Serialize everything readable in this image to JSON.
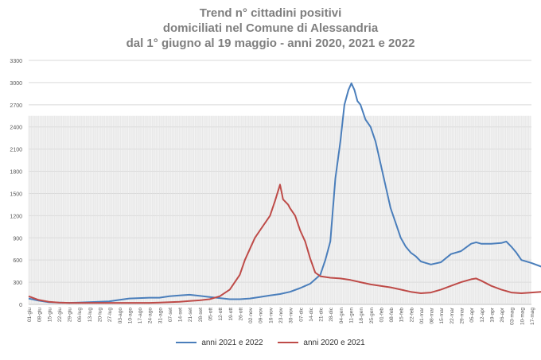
{
  "chart_data": {
    "type": "line",
    "title_lines": [
      "Trend n° cittadini positivi",
      "domiciliati nel Comune di Alessandria",
      "dal 1° giugno al 19 maggio - anni 2020, 2021 e 2022"
    ],
    "ylim": [
      0,
      3300
    ],
    "yticks": [
      0,
      300,
      600,
      900,
      1200,
      1500,
      1800,
      2100,
      2400,
      2700,
      3000,
      3300
    ],
    "x_tick_labels": [
      "01-giu",
      "08-giu",
      "15-giu",
      "22-giu",
      "29-giu",
      "06-lug",
      "13-lug",
      "20-lug",
      "27-lug",
      "03-ago",
      "10-ago",
      "17-ago",
      "24-ago",
      "31-ago",
      "07-set",
      "14-set",
      "21-set",
      "28-set",
      "05-ott",
      "12-ott",
      "19-ott",
      "26-ott",
      "02-nov",
      "09-nov",
      "16-nov",
      "23-nov",
      "30-nov",
      "07-dic",
      "14-dic",
      "21-dic",
      "28-dic",
      "04-gen",
      "11-gen",
      "18-gen",
      "25-gen",
      "01-feb",
      "08-feb",
      "15-feb",
      "22-feb",
      "01-mar",
      "08-mar",
      "15-mar",
      "22-mar",
      "29-mar",
      "05-apr",
      "12-apr",
      "19-apr",
      "26-apr",
      "03-mag",
      "10-mag",
      "17-mag"
    ],
    "grid": "horizontal",
    "legend_position": "bottom",
    "series": [
      {
        "name": "anni 2021 e 2022",
        "color": "#4a7ebb",
        "points": [
          [
            0,
            80
          ],
          [
            1,
            50
          ],
          [
            2,
            30
          ],
          [
            3,
            25
          ],
          [
            4,
            20
          ],
          [
            5,
            25
          ],
          [
            6,
            30
          ],
          [
            7,
            35
          ],
          [
            8,
            40
          ],
          [
            9,
            60
          ],
          [
            10,
            80
          ],
          [
            11,
            85
          ],
          [
            12,
            90
          ],
          [
            13,
            90
          ],
          [
            14,
            110
          ],
          [
            15,
            120
          ],
          [
            16,
            130
          ],
          [
            17,
            115
          ],
          [
            18,
            100
          ],
          [
            19,
            85
          ],
          [
            20,
            70
          ],
          [
            21,
            70
          ],
          [
            22,
            80
          ],
          [
            23,
            100
          ],
          [
            24,
            120
          ],
          [
            25,
            140
          ],
          [
            26,
            170
          ],
          [
            27,
            220
          ],
          [
            28,
            280
          ],
          [
            29,
            400
          ],
          [
            29.5,
            600
          ],
          [
            30,
            850
          ],
          [
            30.5,
            1700
          ],
          [
            31,
            2200
          ],
          [
            31.4,
            2700
          ],
          [
            31.8,
            2900
          ],
          [
            32.1,
            2990
          ],
          [
            32.4,
            2900
          ],
          [
            32.7,
            2750
          ],
          [
            33,
            2700
          ],
          [
            33.5,
            2500
          ],
          [
            34,
            2400
          ],
          [
            34.5,
            2200
          ],
          [
            35,
            1900
          ],
          [
            35.5,
            1600
          ],
          [
            36,
            1300
          ],
          [
            36.5,
            1100
          ],
          [
            37,
            900
          ],
          [
            37.5,
            780
          ],
          [
            38,
            700
          ],
          [
            38.5,
            650
          ],
          [
            39,
            580
          ],
          [
            39.5,
            560
          ],
          [
            40,
            540
          ],
          [
            41,
            570
          ],
          [
            42,
            680
          ],
          [
            43,
            720
          ],
          [
            44,
            820
          ],
          [
            44.5,
            840
          ],
          [
            45,
            820
          ],
          [
            46,
            820
          ],
          [
            47,
            830
          ],
          [
            47.5,
            850
          ],
          [
            48,
            780
          ],
          [
            48.5,
            700
          ],
          [
            49,
            600
          ],
          [
            50,
            560
          ],
          [
            51,
            510
          ]
        ]
      },
      {
        "name": "anni 2020 e 2021",
        "color": "#be4b48",
        "points": [
          [
            0,
            110
          ],
          [
            1,
            60
          ],
          [
            2,
            35
          ],
          [
            3,
            25
          ],
          [
            4,
            20
          ],
          [
            5,
            20
          ],
          [
            6,
            20
          ],
          [
            7,
            20
          ],
          [
            8,
            20
          ],
          [
            9,
            20
          ],
          [
            10,
            20
          ],
          [
            11,
            20
          ],
          [
            12,
            20
          ],
          [
            13,
            25
          ],
          [
            14,
            30
          ],
          [
            15,
            35
          ],
          [
            16,
            45
          ],
          [
            17,
            55
          ],
          [
            18,
            70
          ],
          [
            19,
            110
          ],
          [
            20,
            200
          ],
          [
            21,
            400
          ],
          [
            21.5,
            600
          ],
          [
            22,
            750
          ],
          [
            22.5,
            900
          ],
          [
            23,
            1000
          ],
          [
            24,
            1200
          ],
          [
            24.5,
            1400
          ],
          [
            25,
            1620
          ],
          [
            25.3,
            1420
          ],
          [
            25.8,
            1350
          ],
          [
            26,
            1300
          ],
          [
            26.5,
            1200
          ],
          [
            27,
            1000
          ],
          [
            27.5,
            850
          ],
          [
            28,
            620
          ],
          [
            28.5,
            430
          ],
          [
            29,
            380
          ],
          [
            30,
            360
          ],
          [
            31,
            350
          ],
          [
            32,
            330
          ],
          [
            33,
            300
          ],
          [
            34,
            270
          ],
          [
            35,
            250
          ],
          [
            36,
            230
          ],
          [
            37,
            200
          ],
          [
            38,
            170
          ],
          [
            39,
            150
          ],
          [
            40,
            160
          ],
          [
            41,
            200
          ],
          [
            42,
            250
          ],
          [
            43,
            300
          ],
          [
            44,
            340
          ],
          [
            44.5,
            350
          ],
          [
            45,
            320
          ],
          [
            46,
            250
          ],
          [
            47,
            200
          ],
          [
            48,
            160
          ],
          [
            49,
            150
          ],
          [
            50,
            160
          ],
          [
            51,
            170
          ]
        ]
      }
    ]
  }
}
